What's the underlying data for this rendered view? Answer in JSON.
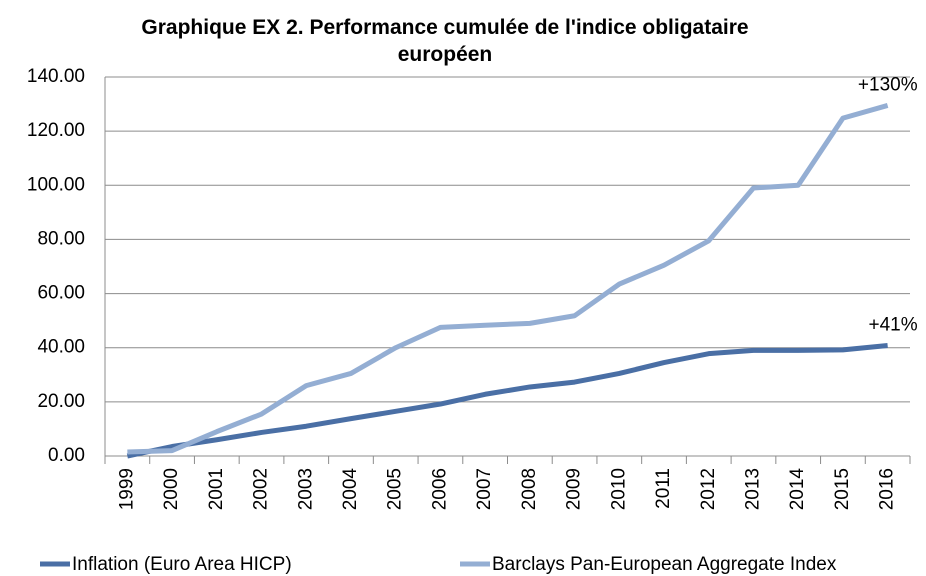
{
  "chart_data": {
    "type": "line",
    "title": "Graphique EX 2. Performance cumulée de l'indice obligataire européen",
    "categories": [
      "1999",
      "2000",
      "2001",
      "2002",
      "2003",
      "2004",
      "2005",
      "2006",
      "2007",
      "2008",
      "2009",
      "2010",
      "2011",
      "2012",
      "2013",
      "2014",
      "2015",
      "2016"
    ],
    "series": [
      {
        "name": "Inflation (Euro Area HICP)",
        "color": "#4a6fa5",
        "values": [
          0,
          3.5,
          6,
          8.7,
          11,
          13.8,
          16.5,
          19.2,
          22.8,
          25.5,
          27.3,
          30.5,
          34.5,
          37.8,
          39,
          39,
          39.2,
          40.8
        ]
      },
      {
        "name": "Barclays Pan-European Aggregate Index",
        "color": "#94aed3",
        "values": [
          1.5,
          2,
          9,
          15.5,
          26,
          30.5,
          40,
          47.5,
          48.3,
          49,
          51.8,
          63.5,
          70.5,
          79.5,
          99,
          100,
          124.8,
          129.5
        ]
      }
    ],
    "annotations": [
      "+41%",
      "+130%"
    ],
    "ylim": [
      0,
      140
    ],
    "yticks": [
      {
        "value": 0,
        "label": "0.00"
      },
      {
        "value": 20,
        "label": "20.00"
      },
      {
        "value": 40,
        "label": "40.00"
      },
      {
        "value": 60,
        "label": "60.00"
      },
      {
        "value": 80,
        "label": "80.00"
      },
      {
        "value": 100,
        "label": "100.00"
      },
      {
        "value": 120,
        "label": "120.00"
      },
      {
        "value": 140,
        "label": "140.00"
      }
    ],
    "grid": true,
    "legend": "bottom"
  }
}
